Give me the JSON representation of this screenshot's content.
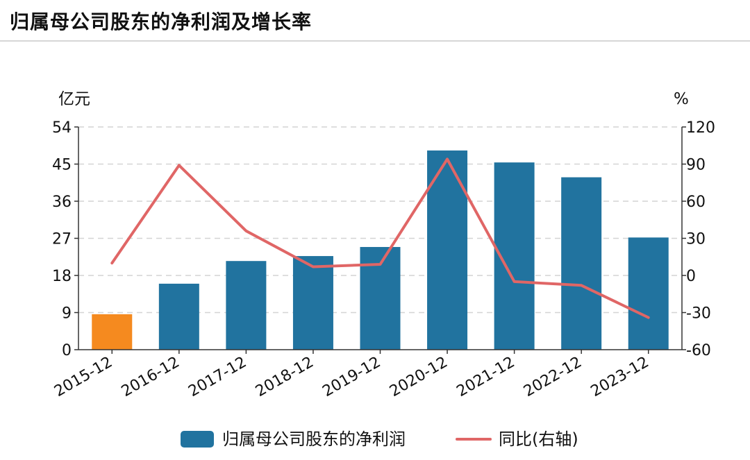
{
  "title": "归属母公司股东的净利润及增长率",
  "chart_data": {
    "type": "bar+line",
    "categories": [
      "2015-12",
      "2016-12",
      "2017-12",
      "2018-12",
      "2019-12",
      "2020-12",
      "2021-12",
      "2022-12",
      "2023-12"
    ],
    "series": [
      {
        "name": "归属母公司股东的净利润",
        "type": "bar",
        "axis": "left",
        "values": [
          8.6,
          16.0,
          21.5,
          22.7,
          24.9,
          48.3,
          45.4,
          41.8,
          27.2
        ],
        "color": "#21739f",
        "highlight_color": "#f58a1f",
        "highlight_index": 0
      },
      {
        "name": "同比(右轴)",
        "type": "line",
        "axis": "right",
        "values": [
          10,
          89,
          36,
          7,
          9,
          94,
          -5,
          -8,
          -34
        ],
        "color": "#e06666"
      }
    ],
    "left_axis": {
      "unit": "亿元",
      "ticks": [
        0,
        9,
        18,
        27,
        36,
        45,
        54
      ],
      "range": [
        0,
        54
      ]
    },
    "right_axis": {
      "unit": "%",
      "ticks": [
        -60,
        -30,
        0,
        30,
        60,
        90,
        120
      ],
      "range": [
        -60,
        120
      ]
    },
    "grid": true,
    "legend_position": "bottom"
  }
}
